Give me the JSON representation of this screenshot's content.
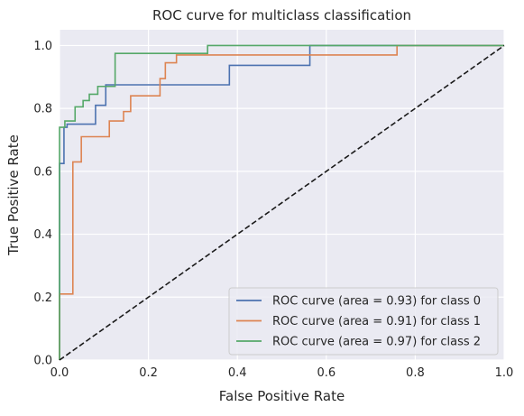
{
  "chart_data": {
    "type": "line",
    "title": "ROC curve for multiclass classification",
    "xlabel": "False Positive Rate",
    "ylabel": "True Positive Rate",
    "xlim": [
      0.0,
      1.0
    ],
    "ylim": [
      0.0,
      1.05
    ],
    "xticks": [
      "0.0",
      "0.2",
      "0.4",
      "0.6",
      "0.8",
      "1.0"
    ],
    "yticks": [
      "0.0",
      "0.2",
      "0.4",
      "0.6",
      "0.8",
      "1.0"
    ],
    "grid": true,
    "legend_position": "lower-right",
    "series": [
      {
        "name": "ROC curve (area = 0.93) for class 0",
        "color": "#4c72b0",
        "x": [
          0.0,
          0.0,
          0.01,
          0.01,
          0.017,
          0.017,
          0.081,
          0.081,
          0.104,
          0.104,
          0.112,
          0.112,
          0.382,
          0.382,
          0.563,
          0.563,
          1.0
        ],
        "y": [
          0.0,
          0.625,
          0.625,
          0.74,
          0.74,
          0.75,
          0.75,
          0.81,
          0.81,
          0.875,
          0.875,
          0.875,
          0.875,
          0.937,
          0.937,
          1.0,
          1.0
        ]
      },
      {
        "name": "ROC curve (area = 0.91) for class 1",
        "color": "#dd8452",
        "x": [
          0.0,
          0.0,
          0.03,
          0.03,
          0.041,
          0.041,
          0.049,
          0.049,
          0.112,
          0.112,
          0.144,
          0.144,
          0.16,
          0.16,
          0.226,
          0.226,
          0.238,
          0.238,
          0.25,
          0.25,
          0.263,
          0.263,
          0.759,
          0.759,
          1.0
        ],
        "y": [
          0.0,
          0.21,
          0.21,
          0.63,
          0.63,
          0.63,
          0.63,
          0.71,
          0.71,
          0.76,
          0.76,
          0.79,
          0.79,
          0.84,
          0.84,
          0.895,
          0.895,
          0.945,
          0.945,
          0.945,
          0.945,
          0.97,
          0.97,
          1.0,
          1.0
        ]
      },
      {
        "name": "ROC curve (area = 0.97) for class 2",
        "color": "#55a868",
        "x": [
          0.0,
          0.0,
          0.012,
          0.012,
          0.021,
          0.021,
          0.035,
          0.035,
          0.053,
          0.053,
          0.067,
          0.067,
          0.086,
          0.086,
          0.099,
          0.099,
          0.125,
          0.125,
          0.333,
          0.333,
          1.0
        ],
        "y": [
          0.0,
          0.74,
          0.74,
          0.76,
          0.76,
          0.76,
          0.76,
          0.805,
          0.805,
          0.825,
          0.825,
          0.845,
          0.845,
          0.87,
          0.87,
          0.87,
          0.87,
          0.975,
          0.975,
          1.0,
          1.0
        ]
      },
      {
        "name": "",
        "color": "#1a1a1a",
        "dashed": true,
        "x": [
          0.0,
          1.0
        ],
        "y": [
          0.0,
          1.0
        ]
      }
    ]
  }
}
